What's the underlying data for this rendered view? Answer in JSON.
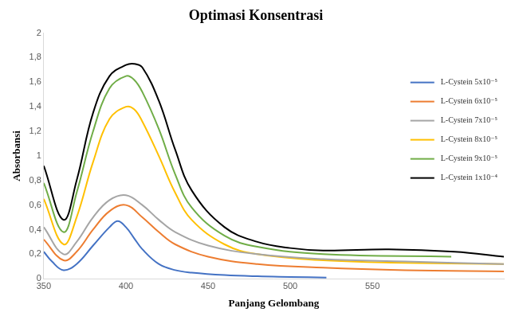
{
  "chart_data": {
    "type": "line",
    "title": "Optimasi Konsentrasi",
    "x_label": "Panjang Gelombang",
    "y_label": "Absorbansi",
    "xlim": [
      350,
      630
    ],
    "xticks": [
      350,
      400,
      450,
      500,
      550
    ],
    "ylim": [
      0,
      2
    ],
    "yticks": [
      0,
      {
        "value": 0.2,
        "label": "0,2"
      },
      {
        "value": 0.4,
        "label": "0,4"
      },
      {
        "value": 0.6,
        "label": "0,6"
      },
      {
        "value": 0.8,
        "label": "0,8"
      },
      1,
      {
        "value": 1.2,
        "label": "1,2"
      },
      {
        "value": 1.4,
        "label": "1,4"
      },
      {
        "value": 1.6,
        "label": "1,6"
      },
      {
        "value": 1.8,
        "label": "1,8"
      },
      2
    ],
    "grid": false,
    "legend": "upper right",
    "series": [
      {
        "name": "L-Cystein 5x10⁻⁵",
        "color": "#4472c4",
        "x": [
          350,
          355,
          362,
          370,
          380,
          390,
          395,
          400,
          405,
          410,
          420,
          430,
          440,
          460,
          480,
          500,
          522
        ],
        "values": [
          0.22,
          0.14,
          0.07,
          0.12,
          0.27,
          0.42,
          0.47,
          0.42,
          0.33,
          0.24,
          0.12,
          0.07,
          0.05,
          0.03,
          0.02,
          0.015,
          0.01
        ]
      },
      {
        "name": "L-Cystein 6x10⁻⁵",
        "color": "#ed7d31",
        "x": [
          350,
          362,
          370,
          380,
          390,
          400,
          410,
          420,
          430,
          450,
          480,
          520,
          570,
          630
        ],
        "values": [
          0.32,
          0.15,
          0.22,
          0.4,
          0.55,
          0.6,
          0.5,
          0.38,
          0.28,
          0.18,
          0.12,
          0.09,
          0.07,
          0.06
        ]
      },
      {
        "name": "L-Cystein 7x10⁻⁵",
        "color": "#a5a5a5",
        "x": [
          350,
          362,
          370,
          380,
          390,
          400,
          410,
          420,
          430,
          450,
          480,
          520,
          570,
          630
        ],
        "values": [
          0.42,
          0.2,
          0.3,
          0.5,
          0.64,
          0.68,
          0.6,
          0.48,
          0.38,
          0.27,
          0.2,
          0.16,
          0.14,
          0.12
        ]
      },
      {
        "name": "L-Cystein 8x10⁻⁵",
        "color": "#ffc000",
        "x": [
          350,
          362,
          370,
          380,
          390,
          400,
          405,
          410,
          420,
          430,
          440,
          460,
          480,
          520,
          570,
          630
        ],
        "values": [
          0.65,
          0.28,
          0.5,
          0.95,
          1.3,
          1.4,
          1.38,
          1.28,
          1.0,
          0.7,
          0.48,
          0.28,
          0.2,
          0.15,
          0.13,
          0.12
        ]
      },
      {
        "name": "L-Cystein 9x10⁻⁵",
        "color": "#70ad47",
        "x": [
          350,
          362,
          370,
          380,
          390,
          400,
          405,
          410,
          420,
          430,
          440,
          460,
          480,
          520,
          598
        ],
        "values": [
          0.78,
          0.38,
          0.7,
          1.2,
          1.55,
          1.65,
          1.62,
          1.52,
          1.22,
          0.85,
          0.58,
          0.35,
          0.26,
          0.2,
          0.18
        ]
      },
      {
        "name": "L-Cystein 1x10⁻⁴",
        "color": "#000000",
        "x": [
          350,
          362,
          370,
          380,
          390,
          400,
          405,
          410,
          420,
          430,
          440,
          460,
          480,
          500,
          520,
          560,
          600,
          630
        ],
        "values": [
          0.92,
          0.48,
          0.8,
          1.35,
          1.65,
          1.74,
          1.75,
          1.72,
          1.45,
          1.05,
          0.72,
          0.42,
          0.3,
          0.25,
          0.23,
          0.24,
          0.22,
          0.18
        ]
      }
    ]
  }
}
